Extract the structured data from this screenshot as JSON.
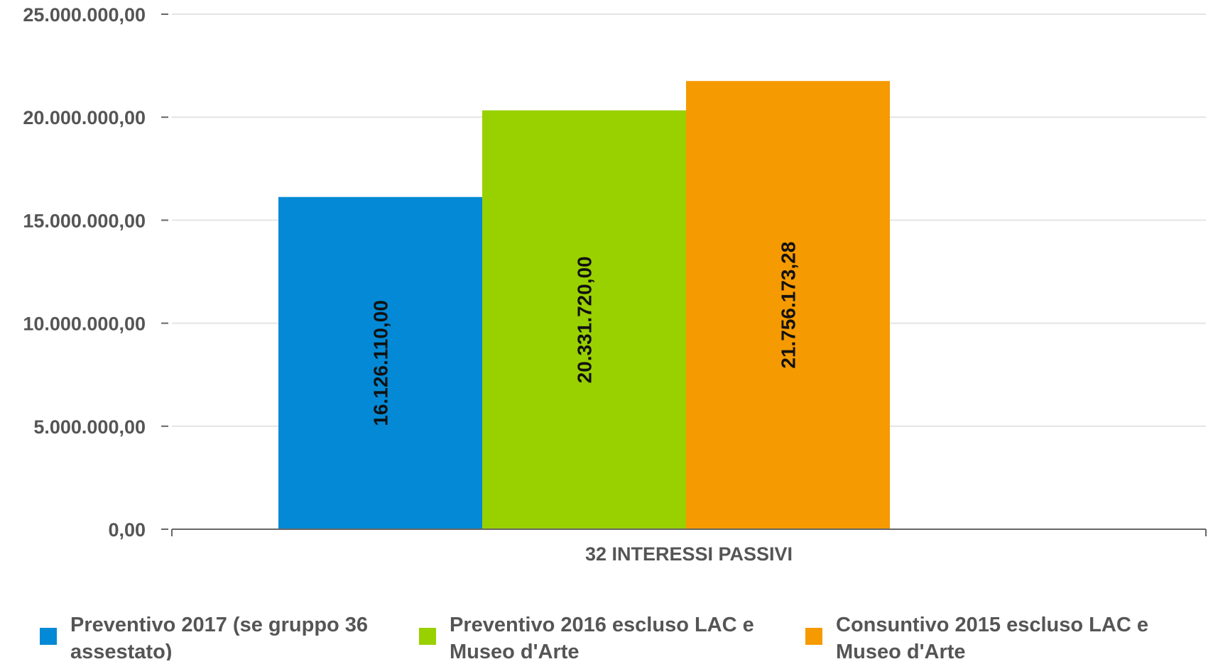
{
  "chart_data": {
    "type": "bar",
    "title": "",
    "xlabel": "",
    "ylabel": "",
    "categories": [
      "32 INTERESSI PASSIVI"
    ],
    "ylim": [
      0,
      25000000
    ],
    "yticks": [
      0,
      5000000,
      10000000,
      15000000,
      20000000,
      25000000
    ],
    "ytick_labels": [
      "0,00",
      "5.000.000,00",
      "10.000.000,00",
      "15.000.000,00",
      "20.000.000,00",
      "25.000.000,00"
    ],
    "grid": true,
    "legend_position": "bottom",
    "series": [
      {
        "name": "Preventivo 2017 (se gruppo 36 assestato)",
        "name_lines": [
          "Preventivo 2017 (se gruppo 36",
          "assestato)"
        ],
        "color": "#0389d5",
        "values": [
          16126110.0
        ],
        "labels": [
          "16.126.110,00"
        ]
      },
      {
        "name": "Preventivo 2016 escluso LAC e Museo d'Arte",
        "name_lines": [
          "Preventivo 2016 escluso LAC e",
          "Museo d'Arte"
        ],
        "color": "#99d000",
        "values": [
          20331720.0
        ],
        "labels": [
          "20.331.720,00"
        ]
      },
      {
        "name": "Consuntivo 2015 escluso LAC e Museo d'Arte",
        "name_lines": [
          "Consuntivo 2015 escluso LAC e",
          "Museo d'Arte"
        ],
        "color": "#f59a00",
        "values": [
          21756173.28
        ],
        "labels": [
          "21.756.173,28"
        ]
      }
    ]
  }
}
